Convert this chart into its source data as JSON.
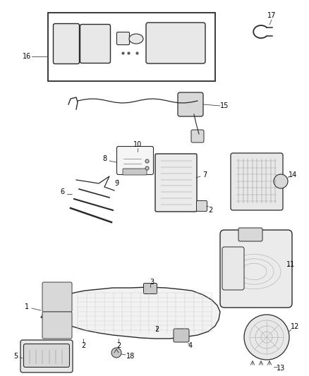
{
  "bg_color": "#ffffff",
  "fig_width": 4.38,
  "fig_height": 5.33,
  "dpi": 100,
  "line_color": "#2a2a2a",
  "text_color": "#000000",
  "font_size": 7.0,
  "leader_color": "#444444",
  "gray1": "#c8c8c8",
  "gray2": "#d8d8d8",
  "gray3": "#e8e8e8",
  "gray4": "#f2f2f2",
  "gray5": "#b0b0b0",
  "gray6": "#909090"
}
